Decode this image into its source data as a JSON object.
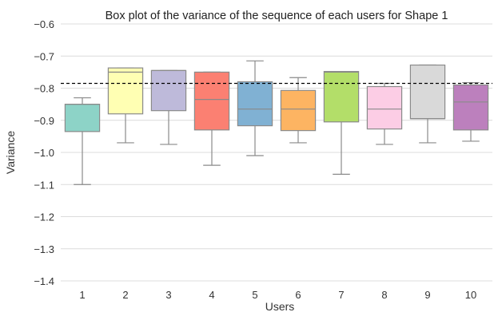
{
  "chart_data": {
    "type": "box",
    "title": "Box plot of the variance of the sequence of each users for Shape 1",
    "xlabel": "Users",
    "ylabel": "Variance",
    "ylim": [
      -1.4,
      -0.6
    ],
    "yticks": [
      "−0.6",
      "−0.7",
      "−0.8",
      "−0.9",
      "−1.0",
      "−1.1",
      "−1.2",
      "−1.3",
      "−1.4"
    ],
    "ytick_values": [
      -0.6,
      -0.7,
      -0.8,
      -0.9,
      -1.0,
      -1.1,
      -1.2,
      -1.3,
      -1.4
    ],
    "grid": "horizontal",
    "reference_line": {
      "y": -0.785,
      "style": "dashed",
      "color": "#000000"
    },
    "categories": [
      "1",
      "2",
      "3",
      "4",
      "5",
      "6",
      "7",
      "8",
      "9",
      "10"
    ],
    "boxes": [
      {
        "min": -1.1,
        "q1": -0.935,
        "median": -0.85,
        "q3": -0.85,
        "max": -0.83,
        "color": "#8dd3c7"
      },
      {
        "min": -0.97,
        "q1": -0.88,
        "median": -0.75,
        "q3": -0.737,
        "max": -0.737,
        "color": "#ffffb3"
      },
      {
        "min": -0.975,
        "q1": -0.87,
        "median": -0.745,
        "q3": -0.745,
        "max": -0.745,
        "color": "#bebada"
      },
      {
        "min": -1.04,
        "q1": -0.93,
        "median": -0.835,
        "q3": -0.75,
        "max": -0.75,
        "color": "#fb8072"
      },
      {
        "min": -1.01,
        "q1": -0.917,
        "median": -0.865,
        "q3": -0.78,
        "max": -0.715,
        "color": "#80b1d3"
      },
      {
        "min": -0.97,
        "q1": -0.932,
        "median": -0.865,
        "q3": -0.807,
        "max": -0.767,
        "color": "#fdb462"
      },
      {
        "min": -1.068,
        "q1": -0.905,
        "median": -0.75,
        "q3": -0.748,
        "max": -0.748,
        "color": "#b3de69"
      },
      {
        "min": -0.975,
        "q1": -0.927,
        "median": -0.865,
        "q3": -0.795,
        "max": -0.785,
        "color": "#fccde5"
      },
      {
        "min": -0.97,
        "q1": -0.895,
        "median": -0.895,
        "q3": -0.728,
        "max": -0.728,
        "color": "#d9d9d9"
      },
      {
        "min": -0.965,
        "q1": -0.93,
        "median": -0.843,
        "q3": -0.79,
        "max": -0.783,
        "color": "#bc80bd"
      }
    ]
  }
}
